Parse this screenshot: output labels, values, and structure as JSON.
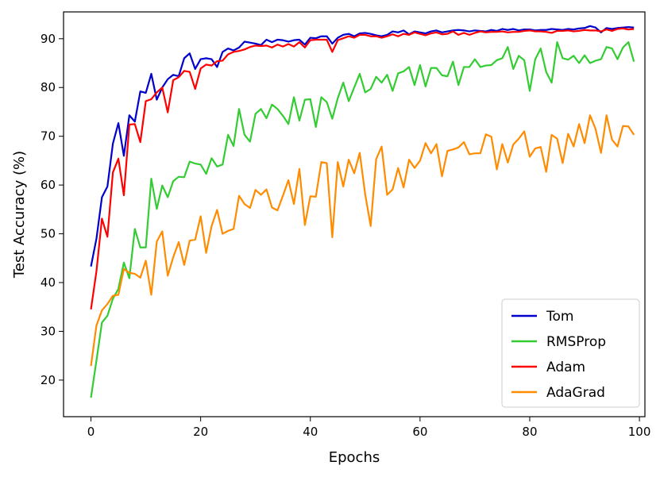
{
  "chart_data": {
    "type": "line",
    "title": "",
    "xlabel": "Epochs",
    "ylabel": "Test Accuracy (%)",
    "xlim": [
      -5,
      101
    ],
    "ylim": [
      12.5,
      95.5
    ],
    "x_ticks": [
      0,
      20,
      40,
      60,
      80,
      100
    ],
    "y_ticks": [
      20,
      30,
      40,
      50,
      60,
      70,
      80,
      90
    ],
    "grid": false,
    "legend": "lower-right",
    "series": [
      {
        "name": "Tom",
        "color": "#0000cc",
        "values": [
          43.3,
          49.0,
          57.5,
          59.7,
          68.5,
          72.7,
          66.0,
          74.3,
          73.0,
          79.2,
          78.9,
          82.8,
          77.5,
          80.0,
          81.7,
          82.6,
          82.3,
          86.0,
          87.0,
          83.8,
          85.8,
          86.0,
          85.8,
          84.2,
          87.3,
          88.0,
          87.6,
          88.2,
          89.4,
          89.2,
          89.0,
          88.7,
          89.8,
          89.3,
          89.8,
          89.7,
          89.4,
          89.7,
          89.8,
          88.8,
          90.2,
          90.1,
          90.5,
          90.5,
          89.0,
          90.2,
          90.8,
          91.0,
          90.5,
          91.1,
          91.2,
          91.0,
          90.7,
          90.5,
          90.8,
          91.5,
          91.3,
          91.7,
          90.9,
          91.5,
          91.3,
          91.1,
          91.5,
          91.7,
          91.3,
          91.5,
          91.7,
          91.8,
          91.7,
          91.5,
          91.7,
          91.6,
          91.5,
          91.8,
          91.6,
          92.0,
          91.8,
          92.0,
          91.7,
          91.9,
          91.9,
          91.7,
          91.8,
          91.8,
          92.0,
          91.9,
          91.8,
          92.0,
          91.9,
          92.1,
          92.2,
          92.6,
          92.3,
          91.3,
          92.2,
          92.0,
          92.2,
          92.3,
          92.4,
          92.3
        ]
      },
      {
        "name": "RMSProp",
        "color": "#33cc33",
        "values": [
          16.4,
          24.0,
          31.8,
          33.2,
          36.7,
          38.7,
          44.1,
          40.9,
          51.0,
          47.2,
          47.2,
          61.3,
          55.1,
          59.9,
          57.5,
          60.8,
          61.7,
          61.6,
          64.8,
          64.4,
          64.2,
          62.3,
          65.5,
          63.8,
          64.2,
          70.3,
          68.0,
          75.6,
          70.3,
          68.9,
          74.6,
          75.6,
          73.7,
          76.5,
          75.6,
          74.2,
          72.5,
          78.0,
          73.2,
          77.5,
          77.6,
          71.9,
          78.0,
          77.0,
          73.6,
          77.8,
          81.0,
          77.2,
          80.0,
          82.8,
          79.0,
          79.7,
          82.2,
          81.0,
          82.6,
          79.3,
          82.9,
          83.3,
          84.2,
          80.5,
          84.6,
          80.2,
          84.0,
          84.0,
          82.5,
          82.3,
          85.3,
          80.5,
          84.2,
          84.2,
          85.8,
          84.2,
          84.5,
          84.6,
          85.6,
          86.0,
          88.3,
          83.8,
          86.5,
          85.6,
          79.3,
          85.8,
          88.0,
          83.2,
          81.0,
          89.3,
          86.0,
          85.7,
          86.5,
          85.0,
          86.6,
          85.0,
          85.5,
          85.8,
          88.3,
          88.0,
          85.8,
          88.2,
          89.3,
          85.3
        ]
      },
      {
        "name": "Adam",
        "color": "#ff0000",
        "values": [
          34.5,
          42.3,
          53.1,
          49.4,
          62.6,
          65.4,
          57.9,
          72.4,
          72.5,
          68.8,
          77.2,
          77.6,
          79.0,
          80.0,
          74.9,
          81.5,
          82.1,
          83.4,
          83.2,
          79.7,
          83.9,
          84.7,
          84.5,
          85.4,
          85.5,
          86.8,
          87.3,
          87.5,
          87.8,
          88.3,
          88.6,
          88.5,
          88.6,
          88.2,
          88.8,
          88.4,
          88.9,
          88.4,
          89.3,
          88.2,
          89.7,
          89.8,
          89.8,
          89.8,
          87.3,
          89.7,
          90.1,
          90.5,
          90.2,
          90.8,
          90.8,
          90.5,
          90.5,
          90.2,
          90.5,
          90.9,
          90.5,
          91.0,
          90.8,
          91.3,
          91.0,
          90.7,
          91.1,
          91.3,
          90.9,
          91.0,
          91.5,
          90.8,
          91.2,
          90.8,
          91.2,
          91.5,
          91.3,
          91.4,
          91.4,
          91.5,
          91.3,
          91.4,
          91.4,
          91.6,
          91.7,
          91.5,
          91.5,
          91.4,
          91.2,
          91.6,
          91.6,
          91.7,
          91.5,
          91.6,
          91.8,
          91.7,
          91.7,
          91.5,
          91.9,
          91.6,
          92.0,
          92.1,
          91.9,
          92.0
        ]
      },
      {
        "name": "AdaGrad",
        "color": "#ff8c00",
        "values": [
          22.9,
          31.2,
          34.3,
          35.6,
          37.3,
          37.5,
          42.8,
          42.0,
          41.8,
          41.0,
          44.5,
          37.5,
          48.4,
          50.5,
          41.4,
          45.2,
          48.3,
          43.6,
          48.6,
          48.8,
          53.6,
          46.1,
          51.6,
          54.9,
          50.0,
          50.6,
          51.0,
          57.8,
          56.1,
          55.3,
          59.0,
          58.0,
          59.1,
          55.4,
          54.8,
          57.8,
          61.0,
          56.1,
          63.3,
          51.8,
          57.7,
          57.6,
          64.7,
          64.5,
          49.3,
          64.7,
          59.7,
          65.2,
          62.4,
          66.6,
          58.1,
          51.6,
          65.3,
          67.9,
          58.0,
          59.1,
          63.5,
          59.5,
          65.2,
          63.5,
          65.0,
          68.6,
          66.5,
          68.4,
          61.8,
          67.0,
          67.3,
          67.7,
          68.8,
          66.3,
          66.5,
          66.5,
          70.4,
          69.9,
          63.2,
          68.4,
          64.6,
          68.3,
          69.5,
          71.0,
          65.8,
          67.5,
          67.8,
          62.7,
          70.3,
          69.5,
          64.5,
          70.5,
          67.9,
          72.5,
          68.6,
          74.3,
          71.5,
          66.6,
          74.3,
          69.3,
          67.9,
          72.1,
          72.0,
          70.3
        ]
      }
    ]
  }
}
